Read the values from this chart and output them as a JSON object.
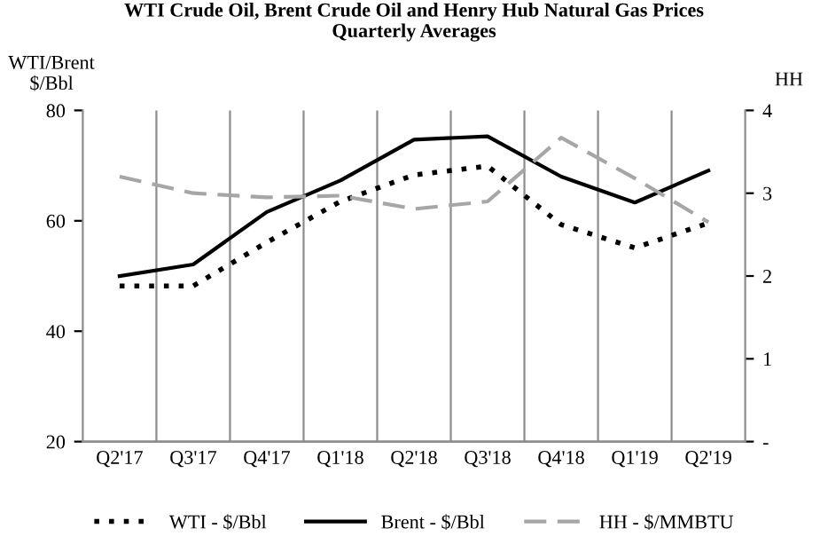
{
  "chart_data": {
    "type": "line",
    "title": "WTI Crude Oil, Brent Crude Oil and Henry Hub Natural Gas Prices\nQuarterly Averages",
    "ylabel": "WTI/Brent\n$/Bbl",
    "y2label": "HH",
    "categories": [
      "Q2'17",
      "Q3'17",
      "Q4'17",
      "Q1'18",
      "Q2'18",
      "Q3'18",
      "Q4'18",
      "Q1'19",
      "Q2'19"
    ],
    "series": [
      {
        "name": "WTI - $/Bbl",
        "color": "#000000",
        "line_style": "dotted",
        "values": [
          48.2,
          48.2,
          56.1,
          63.5,
          68.3,
          69.9,
          59.3,
          55.1,
          59.6
        ]
      },
      {
        "name": "Brent - $/Bbl",
        "color": "#000000",
        "line_style": "solid",
        "values": [
          50.0,
          52.1,
          61.6,
          67.3,
          74.7,
          75.3,
          68.0,
          63.3,
          69.1
        ]
      },
      {
        "name": "HH - $/MMBTU",
        "color": "#a6a6a6",
        "line_style": "dashed",
        "axis": "y2",
        "values": [
          3.2,
          3.0,
          2.95,
          2.97,
          2.81,
          2.9,
          3.67,
          3.18,
          2.65
        ]
      }
    ],
    "ylim": [
      20,
      80
    ],
    "yticks": [
      20,
      40,
      60,
      80
    ],
    "y2lim": [
      0,
      4
    ],
    "y2ticks": [
      {
        "value": 0,
        "label": "-"
      },
      1,
      2,
      3,
      4
    ],
    "grid": "x",
    "legend": "bottom"
  }
}
